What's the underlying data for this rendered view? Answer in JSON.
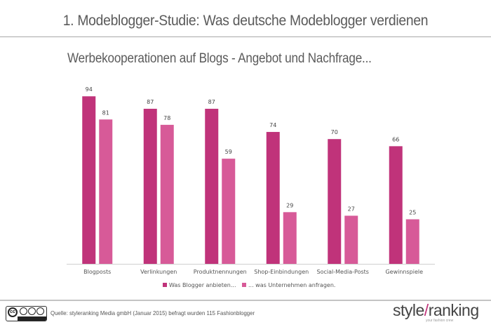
{
  "header": {
    "title": "1. Modeblogger-Studie: Was deutsche Modeblogger verdienen",
    "subtitle": "Werbekooperationen auf Blogs - Angebot und Nachfrage..."
  },
  "chart_data": {
    "type": "bar",
    "title": "Werbekooperationen auf Blogs - Angebot und Nachfrage...",
    "xlabel": "",
    "ylabel": "",
    "ylim": [
      0,
      100
    ],
    "grid": false,
    "legend_position": "bottom-center",
    "categories": [
      "Blogposts",
      "Verlinkungen",
      "Produktnennungen",
      "Shop-Einbindungen",
      "Social-Media-Posts",
      "Gewinnspiele"
    ],
    "series": [
      {
        "name": "Was Blogger anbieten...",
        "color": "#c0337a",
        "values": [
          94,
          87,
          87,
          74,
          70,
          66
        ]
      },
      {
        "name": "... was Unternehmen anfragen.",
        "color": "#d75a98",
        "values": [
          81,
          78,
          59,
          29,
          27,
          25
        ]
      }
    ]
  },
  "footer": {
    "license_icon": "creative-commons-by-nc-nd-icon",
    "license_labels": [
      "cc",
      "BY",
      "NC",
      "ND"
    ],
    "source": "Quelle: styleranking Media gmbH (Januar 2015) befragt wurden 115 Fashionblogger",
    "logo_left": "style",
    "logo_slash": "/",
    "logo_right": "ranking",
    "logo_tagline": "your fashion crew"
  }
}
